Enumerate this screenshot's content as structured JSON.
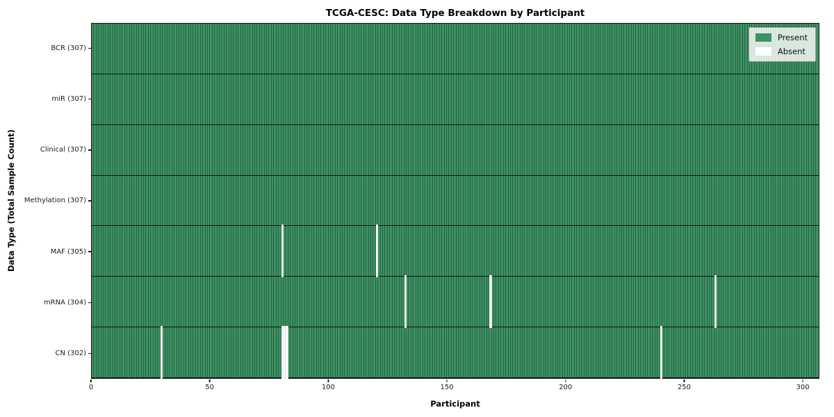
{
  "chart_data": {
    "type": "heatmap",
    "title": "TCGA-CESC: Data Type Breakdown by Participant",
    "xlabel": "Participant",
    "ylabel": "Data Type (Total Sample Count)",
    "n_participants": 307,
    "x_ticks": [
      0,
      50,
      100,
      150,
      200,
      250,
      300
    ],
    "x_range": [
      0,
      307
    ],
    "grid": false,
    "legend_position": "upper right",
    "legend": [
      {
        "label": "Present",
        "color": "#3d9162"
      },
      {
        "label": "Absent",
        "color": "#ffffff"
      }
    ],
    "rows": [
      {
        "label": "BCR (307)",
        "data_type": "BCR",
        "present_count": 307,
        "absent_count": 0,
        "absent_participants": []
      },
      {
        "label": "miR (307)",
        "data_type": "miR",
        "present_count": 307,
        "absent_count": 0,
        "absent_participants": []
      },
      {
        "label": "Clinical (307)",
        "data_type": "Clinical",
        "present_count": 307,
        "absent_count": 0,
        "absent_participants": []
      },
      {
        "label": "Methylation (307)",
        "data_type": "Methylation",
        "present_count": 307,
        "absent_count": 0,
        "absent_participants": []
      },
      {
        "label": "MAF (305)",
        "data_type": "MAF",
        "present_count": 305,
        "absent_count": 2,
        "absent_participants": [
          80,
          120
        ]
      },
      {
        "label": "mRNA (304)",
        "data_type": "mRNA",
        "present_count": 304,
        "absent_count": 3,
        "absent_participants": [
          132,
          168,
          263
        ]
      },
      {
        "label": "CN (302)",
        "data_type": "CN",
        "present_count": 302,
        "absent_count": 5,
        "absent_participants": [
          29,
          80,
          81,
          82,
          240
        ]
      }
    ],
    "colors": {
      "present": "#3d9162",
      "absent": "#ffffff",
      "edge": "rgba(10,35,22,0.42)"
    }
  }
}
